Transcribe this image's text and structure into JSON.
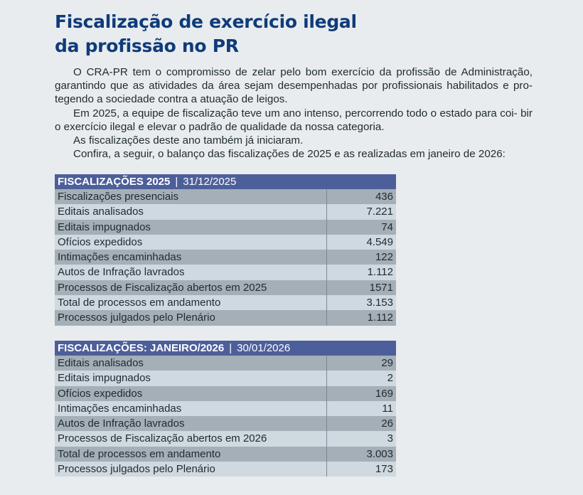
{
  "title": {
    "line1": "Fiscalização de exercício ilegal",
    "line2": "da profissão no PR"
  },
  "intro": {
    "p1_line1": "O CRA-PR tem o compromisso de zelar pelo bom exercício da profissão de Administração,",
    "p1_line2": "garantindo que as atividades da área sejam desempenhadas por profissionais habilitados e pro-",
    "p1_line3": "tegendo a sociedade contra a atuação de leigos.",
    "p2_line1": "Em 2025, a equipe de fiscalização teve um ano intenso, percorrendo todo o estado para coi-",
    "p2_line2": "bir o exercício ilegal e elevar o padrão de qualidade da nossa categoria.",
    "p3": "As fiscalizações deste ano também já iniciaram.",
    "p4": "Confira, a seguir, o balanço das fiscalizações de 2025 e as realizadas em janeiro de 2026:"
  },
  "table2025": {
    "heading": "FISCALIZAÇÕES 2025",
    "separator": "|",
    "date": "31/12/2025",
    "rows": [
      {
        "label": "Fiscalizações presenciais",
        "value": "436"
      },
      {
        "label": "Editais analisados",
        "value": "7.221"
      },
      {
        "label": "Editais impugnados",
        "value": "74"
      },
      {
        "label": "Ofícios expedidos",
        "value": "4.549"
      },
      {
        "label": "Intimações encaminhadas",
        "value": "122"
      },
      {
        "label": "Autos de Infração lavrados",
        "value": "1.112"
      },
      {
        "label": "Processos de Fiscalização abertos em 2025",
        "value": "1571"
      },
      {
        "label": "Total de processos em andamento",
        "value": "3.153"
      },
      {
        "label": "Processos julgados pelo Plenário",
        "value": "1.112"
      }
    ]
  },
  "table2026": {
    "heading": "FISCALIZAÇÕES: JANEIRO/2026",
    "separator": "|",
    "date": "30/01/2026",
    "rows": [
      {
        "label": "Editais analisados",
        "value": "29"
      },
      {
        "label": "Editais impugnados",
        "value": "2"
      },
      {
        "label": "Ofícios expedidos",
        "value": "169"
      },
      {
        "label": "Intimações encaminhadas",
        "value": "11"
      },
      {
        "label": "Autos de Infração lavrados",
        "value": "26"
      },
      {
        "label": "Processos de Fiscalização abertos em 2026",
        "value": "3"
      },
      {
        "label": "Total de processos em andamento",
        "value": "3.003"
      },
      {
        "label": "Processos julgados pelo Plenário",
        "value": "173"
      }
    ]
  },
  "colors": {
    "title": "#0f3b7a",
    "header": "#4d5f9a",
    "row_dark": "#a4afb7",
    "row_light": "#cfd9df",
    "background": "#e8ecef"
  }
}
